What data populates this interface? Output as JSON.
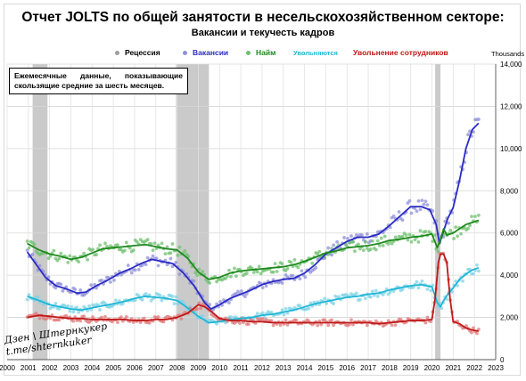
{
  "chart_data": {
    "type": "line",
    "title": "Отчет JOLTS по общей занятости в несельскохозяйственном секторе:",
    "subtitle": "Вакансии и текучесть кадров",
    "units_label": "Thousands",
    "note": "Ежемесячные данные, показывающие скользящие средние за шесть месяцев.",
    "watermark": [
      "Дзен \\ Штернкукер",
      "t.me/shternkuker"
    ],
    "legend_position": "top",
    "grid": true,
    "x_ticks": [
      "2000",
      "2001",
      "2002",
      "2003",
      "2004",
      "2005",
      "2006",
      "2007",
      "2008",
      "2009",
      "2010",
      "2011",
      "2012",
      "2013",
      "2014",
      "2015",
      "2016",
      "2017",
      "2018",
      "2019",
      "2020",
      "2021",
      "2022",
      "2023"
    ],
    "y_ticks": [
      "0",
      "2,000",
      "4,000",
      "6,000",
      "8,000",
      "10,000",
      "12,000",
      "14,000"
    ],
    "xlim": [
      2000,
      2023
    ],
    "ylim": [
      0,
      14000
    ],
    "recessions": [
      {
        "name": "Рецессия",
        "color": "#bdbdbd",
        "periods": [
          [
            2001.2,
            2001.9
          ],
          [
            2007.95,
            2009.5
          ],
          [
            2020.15,
            2020.4
          ]
        ]
      }
    ],
    "series": [
      {
        "name": "Вакансии",
        "color": "#2b2bc4",
        "dot_color": "#8f8fd9",
        "x": [
          2000.95,
          2001.3,
          2001.8,
          2002.3,
          2002.8,
          2003.3,
          2003.7,
          2004.2,
          2004.8,
          2005.3,
          2005.8,
          2006.3,
          2006.8,
          2007.3,
          2007.8,
          2008.3,
          2008.8,
          2009.3,
          2009.6,
          2010.0,
          2010.5,
          2011.0,
          2011.5,
          2012.0,
          2012.5,
          2013.0,
          2013.5,
          2014.0,
          2014.5,
          2015.0,
          2015.5,
          2016.0,
          2016.5,
          2017.0,
          2017.5,
          2018.0,
          2018.5,
          2019.0,
          2019.5,
          2019.9,
          2020.2,
          2020.35,
          2020.55,
          2020.75,
          2021.0,
          2021.3,
          2021.6,
          2021.9,
          2022.2
        ],
        "values": [
          5100,
          4600,
          3900,
          3500,
          3350,
          3150,
          3200,
          3500,
          3800,
          4100,
          4300,
          4550,
          4750,
          4650,
          4550,
          4100,
          3500,
          2700,
          2400,
          2600,
          2900,
          3100,
          3300,
          3550,
          3700,
          3800,
          3850,
          4100,
          4500,
          5000,
          5300,
          5600,
          5800,
          5800,
          5950,
          6350,
          6800,
          7250,
          7250,
          7100,
          6400,
          5500,
          6100,
          6700,
          7200,
          8500,
          10000,
          10900,
          11200
        ]
      },
      {
        "name": "Найм",
        "color": "#1e8a1e",
        "dot_color": "#6fbf6f",
        "x": [
          2000.95,
          2001.5,
          2002.0,
          2002.5,
          2003.0,
          2003.5,
          2004.0,
          2004.5,
          2005.0,
          2005.5,
          2006.0,
          2006.5,
          2007.0,
          2007.5,
          2008.0,
          2008.5,
          2009.0,
          2009.5,
          2010.0,
          2010.5,
          2011.0,
          2011.5,
          2012.0,
          2012.5,
          2013.0,
          2013.5,
          2014.0,
          2014.5,
          2015.0,
          2015.5,
          2016.0,
          2016.5,
          2017.0,
          2017.5,
          2018.0,
          2018.5,
          2019.0,
          2019.5,
          2020.0,
          2020.25,
          2020.4,
          2020.55,
          2020.7,
          2021.0,
          2021.3,
          2021.6,
          2021.9,
          2022.2
        ],
        "values": [
          5500,
          5200,
          5000,
          4900,
          4750,
          4850,
          5050,
          5250,
          5300,
          5350,
          5400,
          5450,
          5350,
          5250,
          5200,
          4800,
          4150,
          3800,
          3900,
          4100,
          4200,
          4250,
          4300,
          4350,
          4400,
          4500,
          4650,
          4850,
          5050,
          5150,
          5300,
          5350,
          5400,
          5500,
          5650,
          5700,
          5800,
          5850,
          5950,
          5300,
          5700,
          6200,
          5900,
          6000,
          6200,
          6400,
          6500,
          6600
        ]
      },
      {
        "name": "Увольняются",
        "color": "#1fb6d6",
        "dot_color": "#7fd3e6",
        "x": [
          2000.95,
          2001.5,
          2002.0,
          2002.5,
          2003.0,
          2003.5,
          2004.0,
          2004.5,
          2005.0,
          2005.5,
          2006.0,
          2006.5,
          2007.0,
          2007.5,
          2008.0,
          2008.5,
          2009.0,
          2009.5,
          2010.0,
          2010.5,
          2011.0,
          2011.5,
          2012.0,
          2012.5,
          2013.0,
          2013.5,
          2014.0,
          2014.5,
          2015.0,
          2015.5,
          2016.0,
          2016.5,
          2017.0,
          2017.5,
          2018.0,
          2018.5,
          2019.0,
          2019.5,
          2020.0,
          2020.25,
          2020.4,
          2020.55,
          2020.75,
          2021.0,
          2021.3,
          2021.6,
          2021.9,
          2022.2
        ],
        "values": [
          3000,
          2800,
          2600,
          2500,
          2400,
          2350,
          2450,
          2550,
          2650,
          2750,
          2900,
          3000,
          2950,
          2900,
          2800,
          2450,
          2050,
          1750,
          1800,
          1900,
          1950,
          2000,
          2100,
          2150,
          2250,
          2350,
          2500,
          2650,
          2750,
          2850,
          2950,
          3000,
          3100,
          3150,
          3300,
          3400,
          3500,
          3550,
          3450,
          2700,
          2500,
          2800,
          3100,
          3400,
          3800,
          4050,
          4250,
          4350
        ]
      },
      {
        "name": "Увольнение сотрудников",
        "color": "#c01717",
        "dot_color": "#e07a7a",
        "x": [
          2000.95,
          2001.5,
          2002.0,
          2002.5,
          2003.0,
          2003.5,
          2004.0,
          2004.5,
          2005.0,
          2005.5,
          2006.0,
          2006.5,
          2007.0,
          2007.5,
          2008.0,
          2008.5,
          2009.0,
          2009.3,
          2009.6,
          2010.0,
          2010.5,
          2011.0,
          2011.5,
          2012.0,
          2012.5,
          2013.0,
          2013.5,
          2014.0,
          2014.5,
          2015.0,
          2015.5,
          2016.0,
          2016.5,
          2017.0,
          2017.5,
          2018.0,
          2018.5,
          2019.0,
          2019.5,
          2020.0,
          2020.15,
          2020.3,
          2020.4,
          2020.55,
          2020.7,
          2020.85,
          2021.0,
          2021.3,
          2021.6,
          2021.9,
          2022.2
        ],
        "values": [
          2000,
          2100,
          2050,
          2000,
          1950,
          1950,
          1900,
          1900,
          1900,
          1900,
          1850,
          1850,
          1900,
          1900,
          2000,
          2200,
          2600,
          2500,
          2300,
          1950,
          1850,
          1850,
          1800,
          1800,
          1750,
          1750,
          1750,
          1750,
          1750,
          1750,
          1750,
          1750,
          1750,
          1750,
          1700,
          1750,
          1800,
          1850,
          1850,
          1900,
          2900,
          4600,
          5000,
          5000,
          4600,
          2900,
          1800,
          1700,
          1500,
          1400,
          1350
        ]
      }
    ]
  }
}
